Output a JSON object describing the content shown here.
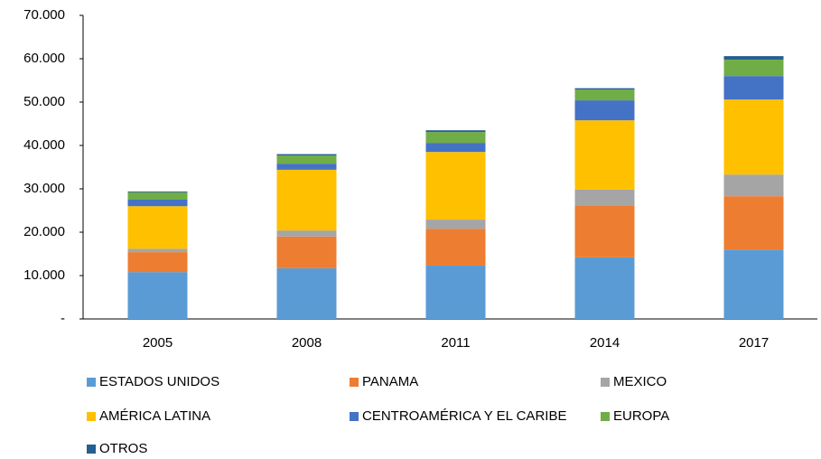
{
  "chart_data": {
    "type": "stacked_bar",
    "categories": [
      "2005",
      "2008",
      "2011",
      "2014",
      "2017"
    ],
    "series": [
      {
        "name": "ESTADOS UNIDOS",
        "color": "#5b9bd5",
        "values": [
          10800,
          11700,
          12300,
          14200,
          16000
        ]
      },
      {
        "name": "PANAMA",
        "color": "#ed7d31",
        "values": [
          4600,
          7300,
          8500,
          12000,
          12300
        ]
      },
      {
        "name": "MEXICO",
        "color": "#a5a5a5",
        "values": [
          800,
          1400,
          2100,
          3600,
          5000
        ]
      },
      {
        "name": "AMÉRICA LATINA",
        "color": "#ffc000",
        "values": [
          9800,
          14000,
          15600,
          16000,
          17300
        ]
      },
      {
        "name": "CENTROAMÉRICA Y EL CARIBE",
        "color": "#4472c4",
        "values": [
          1500,
          1400,
          2100,
          4600,
          5400
        ]
      },
      {
        "name": "EUROPA",
        "color": "#70ad47",
        "values": [
          1700,
          1900,
          2500,
          2500,
          3800
        ]
      },
      {
        "name": "OTROS",
        "color": "#255e91",
        "values": [
          200,
          300,
          400,
          300,
          800
        ]
      }
    ],
    "ylim": [
      0,
      70000
    ],
    "yticks": [
      {
        "value": 0,
        "label": "-"
      },
      {
        "value": 10000,
        "label": "10.000"
      },
      {
        "value": 20000,
        "label": "20.000"
      },
      {
        "value": 30000,
        "label": "30.000"
      },
      {
        "value": 40000,
        "label": "40.000"
      },
      {
        "value": 50000,
        "label": "50.000"
      },
      {
        "value": 60000,
        "label": "60.000"
      },
      {
        "value": 70000,
        "label": "70.000"
      }
    ],
    "legend": "bottom"
  }
}
